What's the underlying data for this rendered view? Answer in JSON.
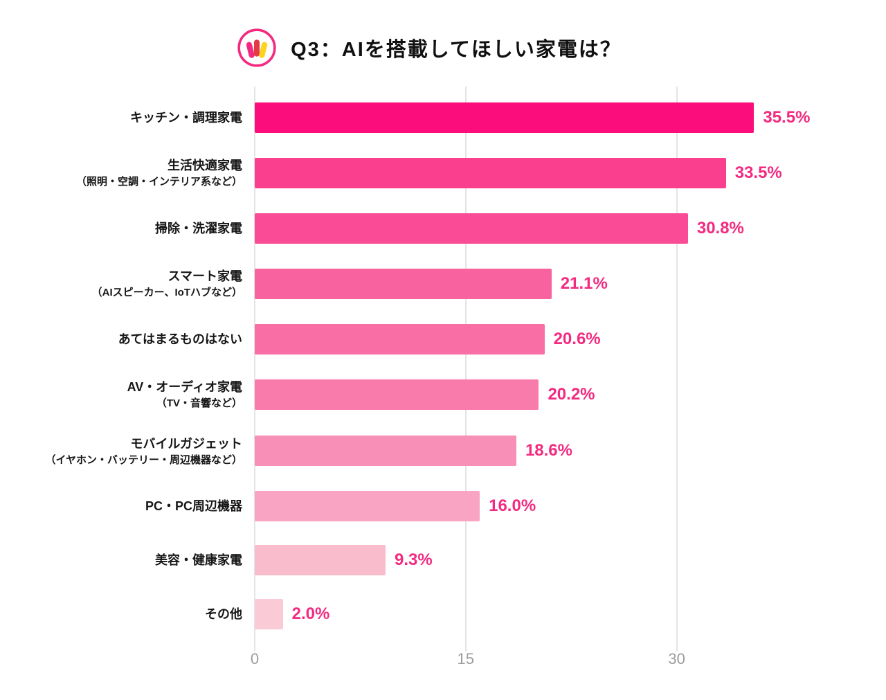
{
  "header": {
    "title": "Q3：AIを搭載してほしい家電は？"
  },
  "chart_data": {
    "type": "bar",
    "orientation": "horizontal",
    "title": "Q3：AIを搭載してほしい家電は？",
    "categories": [
      {
        "main": "キッチン・調理家電",
        "sub": ""
      },
      {
        "main": "生活快適家電",
        "sub": "（照明・空調・インテリア系など）"
      },
      {
        "main": "掃除・洗濯家電",
        "sub": ""
      },
      {
        "main": "スマート家電",
        "sub": "（AIスピーカー、IoTハブなど）"
      },
      {
        "main": "あてはまるものはない",
        "sub": ""
      },
      {
        "main": "AV・オーディオ家電",
        "sub": "（TV・音響など）"
      },
      {
        "main": "モバイルガジェット",
        "sub": "（イヤホン・バッテリー・周辺機器など）"
      },
      {
        "main": "PC・PC周辺機器",
        "sub": ""
      },
      {
        "main": "美容・健康家電",
        "sub": ""
      },
      {
        "main": "その他",
        "sub": ""
      }
    ],
    "values": [
      35.5,
      33.5,
      30.8,
      21.1,
      20.6,
      20.2,
      18.6,
      16.0,
      9.3,
      2.0
    ],
    "value_labels": [
      "35.5%",
      "33.5%",
      "30.8%",
      "21.1%",
      "20.6%",
      "20.2%",
      "18.6%",
      "16.0%",
      "9.3%",
      "2.0%"
    ],
    "bar_colors": [
      "#fb0d7c",
      "#fa3f8e",
      "#f94b96",
      "#f8639f",
      "#f86ea5",
      "#f87bac",
      "#f78fb7",
      "#f8a4c2",
      "#f9bccd",
      "#facbd7"
    ],
    "value_label_color": "#f32a80",
    "x_ticks": [
      "0",
      "15",
      "30"
    ],
    "x_tick_values": [
      0,
      15,
      30
    ],
    "xlim": [
      0,
      37.5
    ],
    "xlabel": "",
    "ylabel": "",
    "grid": true,
    "legend": false
  }
}
